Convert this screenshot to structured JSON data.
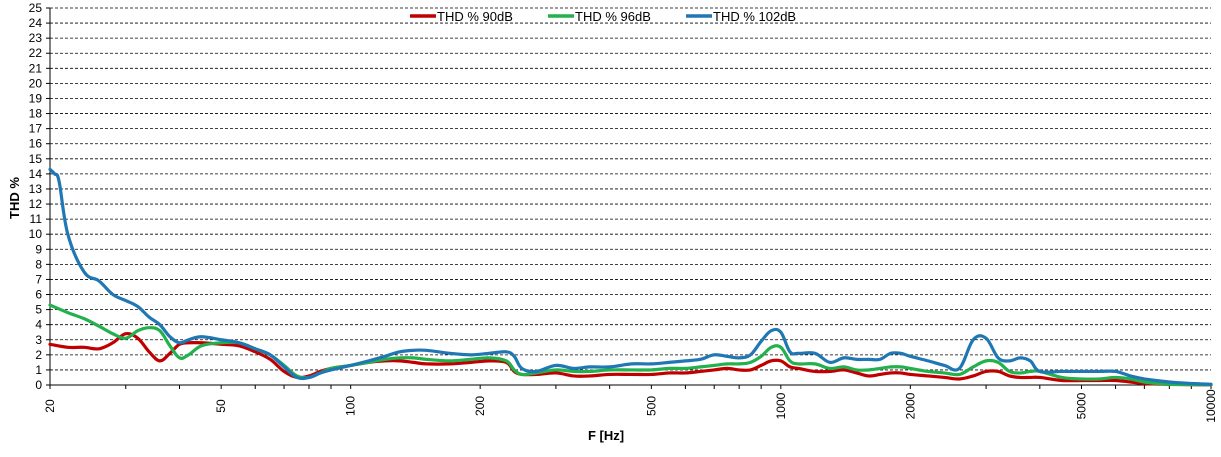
{
  "chart_data": {
    "type": "line",
    "title": "",
    "xlabel": "F [Hz]",
    "ylabel": "THD %",
    "xscale": "log",
    "xlim": [
      20,
      10000
    ],
    "ylim": [
      0,
      25
    ],
    "x_ticks": [
      20,
      50,
      100,
      200,
      500,
      1000,
      2000,
      5000,
      10000
    ],
    "x_tick_labels": [
      "20",
      "50",
      "100",
      "200",
      "500",
      "1000",
      "2000",
      "5000",
      "10000"
    ],
    "y_ticks": [
      0,
      1,
      2,
      3,
      4,
      5,
      6,
      7,
      8,
      9,
      10,
      11,
      12,
      13,
      14,
      15,
      16,
      17,
      18,
      19,
      20,
      21,
      22,
      23,
      24,
      25
    ],
    "y_tick_labels": [
      "0",
      "1",
      "2",
      "3",
      "4",
      "5",
      "6",
      "7",
      "8",
      "9",
      "10",
      "11",
      "12",
      "13",
      "14",
      "15",
      "16",
      "17",
      "18",
      "19",
      "20",
      "21",
      "22",
      "23",
      "24",
      "25"
    ],
    "grid": true,
    "legend_position": "top-center",
    "series": [
      {
        "name": "THD % 90dB",
        "color": "#c00000",
        "x": [
          20,
          22,
          24,
          26,
          28,
          30,
          32,
          34,
          36,
          38,
          40,
          42,
          45,
          50,
          55,
          60,
          65,
          70,
          75,
          80,
          85,
          90,
          100,
          110,
          120,
          130,
          140,
          150,
          170,
          190,
          210,
          230,
          240,
          250,
          270,
          300,
          330,
          360,
          400,
          450,
          500,
          550,
          600,
          650,
          700,
          750,
          800,
          850,
          900,
          950,
          1000,
          1050,
          1100,
          1200,
          1300,
          1400,
          1500,
          1600,
          1700,
          1800,
          1900,
          2000,
          2200,
          2400,
          2600,
          2800,
          3000,
          3200,
          3400,
          3600,
          3800,
          4000,
          4500,
          5000,
          5500,
          6000,
          6500,
          7000,
          8000,
          9000,
          10000
        ],
        "y": [
          2.7,
          2.5,
          2.5,
          2.4,
          2.8,
          3.4,
          3.1,
          2.2,
          1.6,
          2.1,
          2.7,
          2.8,
          2.8,
          2.7,
          2.6,
          2.2,
          1.7,
          0.9,
          0.5,
          0.6,
          0.9,
          1.1,
          1.3,
          1.5,
          1.6,
          1.6,
          1.5,
          1.4,
          1.4,
          1.5,
          1.6,
          1.5,
          0.9,
          0.7,
          0.7,
          0.8,
          0.6,
          0.6,
          0.7,
          0.7,
          0.7,
          0.8,
          0.8,
          0.9,
          1.0,
          1.1,
          1.0,
          1.0,
          1.3,
          1.6,
          1.6,
          1.2,
          1.1,
          0.9,
          0.9,
          1.0,
          0.8,
          0.6,
          0.7,
          0.8,
          0.8,
          0.7,
          0.6,
          0.5,
          0.4,
          0.6,
          0.9,
          0.9,
          0.6,
          0.5,
          0.5,
          0.5,
          0.3,
          0.3,
          0.3,
          0.3,
          0.2,
          0.1,
          0.05,
          0.02,
          0.02
        ]
      },
      {
        "name": "THD % 96dB",
        "color": "#22b14c",
        "x": [
          20,
          22,
          24,
          26,
          28,
          30,
          32,
          34,
          36,
          38,
          40,
          42,
          45,
          50,
          55,
          60,
          65,
          70,
          75,
          80,
          85,
          90,
          100,
          110,
          120,
          130,
          140,
          150,
          170,
          190,
          210,
          230,
          240,
          250,
          270,
          300,
          330,
          360,
          400,
          450,
          500,
          550,
          600,
          650,
          700,
          750,
          800,
          850,
          900,
          950,
          1000,
          1050,
          1100,
          1200,
          1300,
          1400,
          1500,
          1600,
          1700,
          1800,
          1900,
          2000,
          2200,
          2400,
          2600,
          2800,
          3000,
          3200,
          3400,
          3600,
          3800,
          4000,
          4500,
          5000,
          5500,
          6000,
          6500,
          7000,
          8000,
          9000,
          10000
        ],
        "y": [
          5.3,
          4.8,
          4.4,
          3.9,
          3.4,
          3.1,
          3.6,
          3.8,
          3.6,
          2.6,
          1.8,
          2.0,
          2.6,
          2.8,
          2.8,
          2.4,
          2.0,
          1.3,
          0.6,
          0.5,
          0.8,
          1.1,
          1.3,
          1.5,
          1.7,
          1.8,
          1.8,
          1.7,
          1.6,
          1.7,
          1.8,
          1.6,
          1.0,
          0.7,
          0.8,
          1.0,
          0.9,
          0.9,
          1.0,
          1.0,
          1.0,
          1.1,
          1.1,
          1.2,
          1.3,
          1.4,
          1.4,
          1.5,
          1.9,
          2.5,
          2.5,
          1.6,
          1.4,
          1.4,
          1.1,
          1.2,
          1.0,
          1.0,
          1.1,
          1.2,
          1.2,
          1.1,
          0.9,
          0.8,
          0.7,
          1.2,
          1.6,
          1.5,
          0.9,
          0.8,
          0.9,
          0.9,
          0.5,
          0.4,
          0.4,
          0.5,
          0.4,
          0.2,
          0.05,
          0.03,
          0.02
        ]
      },
      {
        "name": "THD % 102dB",
        "color": "#1f77b4",
        "x": [
          20,
          20.5,
          21,
          22,
          24,
          26,
          28,
          30,
          32,
          34,
          36,
          38,
          40,
          42,
          45,
          50,
          55,
          60,
          65,
          70,
          75,
          80,
          85,
          90,
          100,
          110,
          120,
          130,
          140,
          150,
          170,
          190,
          210,
          230,
          240,
          250,
          270,
          300,
          330,
          360,
          400,
          450,
          500,
          550,
          600,
          650,
          700,
          750,
          800,
          850,
          900,
          950,
          1000,
          1050,
          1100,
          1200,
          1300,
          1400,
          1500,
          1600,
          1700,
          1800,
          1900,
          2000,
          2200,
          2400,
          2600,
          2800,
          3000,
          3200,
          3400,
          3600,
          3800,
          4000,
          4500,
          5000,
          5500,
          6000,
          6500,
          7000,
          8000,
          9000,
          10000
        ],
        "y": [
          14.3,
          14.0,
          13.5,
          10.0,
          7.5,
          6.9,
          6.0,
          5.6,
          5.2,
          4.5,
          4.0,
          3.2,
          2.8,
          3.0,
          3.2,
          3.0,
          2.8,
          2.4,
          2.0,
          1.2,
          0.5,
          0.5,
          0.8,
          1.0,
          1.3,
          1.6,
          1.9,
          2.2,
          2.3,
          2.3,
          2.1,
          2.0,
          2.1,
          2.2,
          1.9,
          1.1,
          0.9,
          1.3,
          1.1,
          1.2,
          1.2,
          1.4,
          1.4,
          1.5,
          1.6,
          1.7,
          2.0,
          1.9,
          1.8,
          2.0,
          2.9,
          3.6,
          3.5,
          2.2,
          2.1,
          2.1,
          1.5,
          1.8,
          1.7,
          1.7,
          1.7,
          2.1,
          2.1,
          1.9,
          1.6,
          1.3,
          1.1,
          3.0,
          3.1,
          1.8,
          1.6,
          1.8,
          1.6,
          0.9,
          0.9,
          0.9,
          0.9,
          0.9,
          0.6,
          0.4,
          0.2,
          0.1,
          0.05
        ]
      }
    ]
  }
}
